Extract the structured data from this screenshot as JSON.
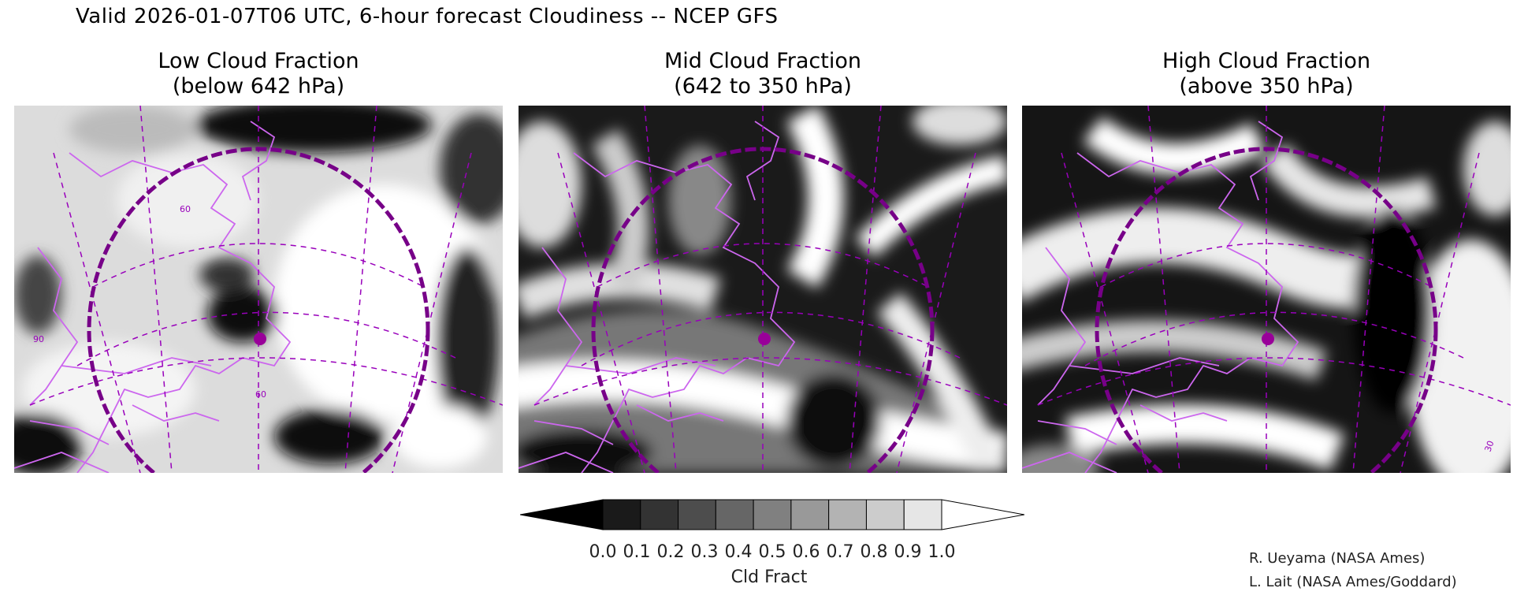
{
  "header": {
    "title": "Valid 2026-01-07T06 UTC, 6-hour forecast Cloudiness -- NCEP GFS"
  },
  "panels": [
    {
      "title_line1": "Low Cloud Fraction",
      "title_line2": "(below 642 hPa)"
    },
    {
      "title_line1": "Mid Cloud Fraction",
      "title_line2": "(642 to 350 hPa)"
    },
    {
      "title_line1": "High Cloud Fraction",
      "title_line2": "(above 350 hPa)"
    }
  ],
  "map_labels": {
    "lat_60": "60",
    "lon_60": "60",
    "lon_30": "30",
    "lon_90": "90"
  },
  "colorbar": {
    "label": "Cld Fract",
    "ticks": [
      "0.0",
      "0.1",
      "0.2",
      "0.3",
      "0.4",
      "0.5",
      "0.6",
      "0.7",
      "0.8",
      "0.9",
      "1.0"
    ],
    "colors": [
      "#000000",
      "#1a1a1a",
      "#333333",
      "#4d4d4d",
      "#666666",
      "#808080",
      "#999999",
      "#b3b3b3",
      "#cccccc",
      "#e6e6e6",
      "#ffffff"
    ]
  },
  "credits": {
    "line1": "R. Ueyama (NASA Ames)",
    "line2": "L. Lait (NASA Ames/Goddard)"
  },
  "colors": {
    "coastline": "#cc66ee",
    "grid": "#9900bb",
    "circle": "#770088"
  }
}
